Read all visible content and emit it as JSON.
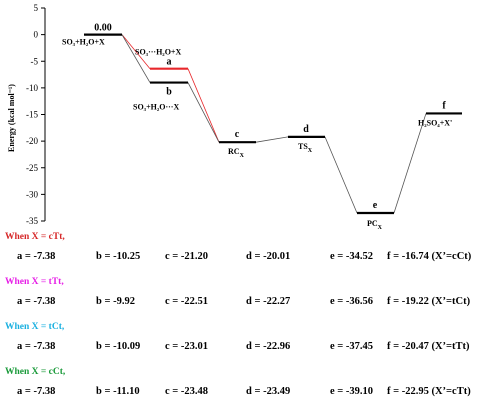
{
  "chart_data": {
    "type": "energy-level-diagram",
    "ylabel": "Energy (kcal mol⁻¹)",
    "ylim": [
      -35,
      5
    ],
    "yticks": [
      5,
      0,
      -5,
      -10,
      -15,
      -20,
      -25,
      -30,
      -35
    ],
    "levels": [
      {
        "label": "0.00",
        "energy": 0.0,
        "species": "SO₃+H₂O+X",
        "color": "#000000"
      },
      {
        "label": "a",
        "energy": -6.4,
        "species": "SO₃···H₂O+X",
        "color": "#e8272b"
      },
      {
        "label": "b",
        "energy": -9.0,
        "species": "SO₃+H₂O···X",
        "color": "#000000"
      },
      {
        "label": "c",
        "energy": -20.2,
        "species": "RC",
        "subscript": "X",
        "color": "#000000"
      },
      {
        "label": "d",
        "energy": -19.2,
        "species": "TS",
        "subscript": "X",
        "color": "#000000"
      },
      {
        "label": "e",
        "energy": -33.5,
        "species": "PC",
        "subscript": "X",
        "color": "#000000"
      },
      {
        "label": "f",
        "energy": -14.8,
        "species": "H₂SO₄+X'",
        "color": "#000000"
      }
    ],
    "connectors": [
      {
        "from": 0,
        "to": 1,
        "color": "#e8272b"
      },
      {
        "from": 1,
        "to": 3,
        "color": "#e8272b"
      },
      {
        "from": 0,
        "to": 2,
        "color": "#555555"
      },
      {
        "from": 2,
        "to": 3,
        "color": "#555555"
      },
      {
        "from": 3,
        "to": 4,
        "color": "#555555"
      },
      {
        "from": 4,
        "to": 5,
        "color": "#555555"
      },
      {
        "from": 5,
        "to": 6,
        "color": "#555555"
      }
    ]
  },
  "groups": [
    {
      "header": "When X = cTt,",
      "color": "#d62728",
      "values": [
        "a = -7.38",
        "b = -10.25",
        "c = -21.20",
        "d = -20.01",
        "e = -34.52",
        "f = -16.74 (X’=cCt)"
      ]
    },
    {
      "header": "When X = tTt,",
      "color": "#e61ee6",
      "values": [
        "a = -7.38",
        "b = -9.92",
        "c = -22.51",
        "d = -22.27",
        "e = -36.56",
        "f = -19.22 (X’=tCt)"
      ]
    },
    {
      "header": "When X = tCt,",
      "color": "#1ab0e0",
      "values": [
        "a = -7.38",
        "b = -10.09",
        "c = -23.01",
        "d = -22.96",
        "e = -37.45",
        "f = -20.47 (X’=tTt)"
      ]
    },
    {
      "header": "When X = cCt,",
      "color": "#1a9a3a",
      "values": [
        "a = -7.38",
        "b = -11.10",
        "c = -23.48",
        "d = -23.49",
        "e = -39.10",
        "f = -22.95 (X’=cTt)"
      ]
    }
  ]
}
